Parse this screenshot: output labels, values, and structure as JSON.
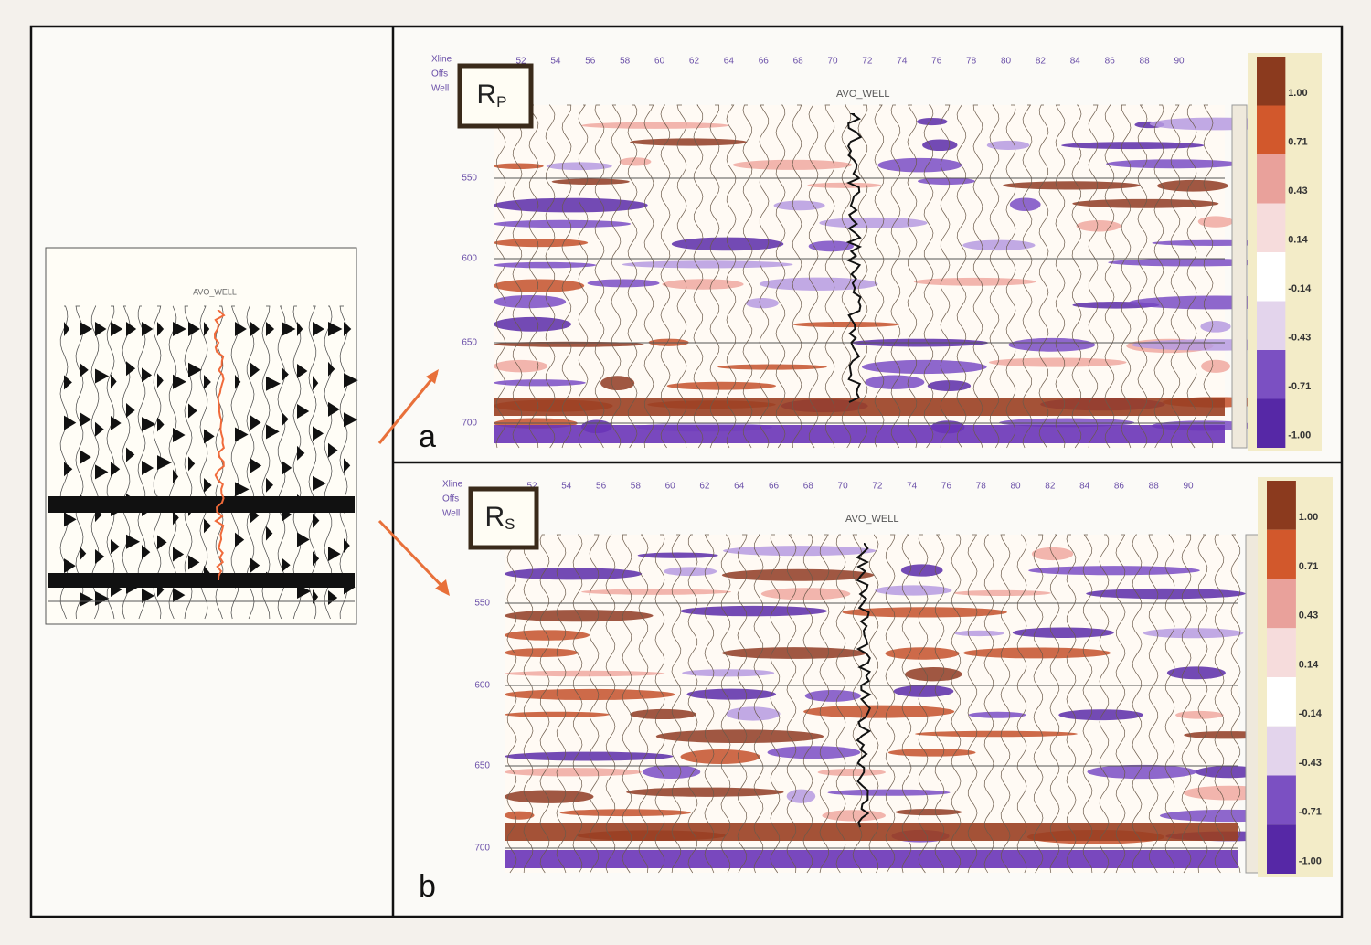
{
  "inset": {
    "well": "AVO_WELL"
  },
  "panels": [
    {
      "label": "a",
      "title": {
        "main": "R",
        "sub": "P"
      },
      "header_rows": [
        "Xline",
        "Offs",
        "Well"
      ],
      "well": "AVO_WELL",
      "x_ticks": [
        "52",
        "54",
        "56",
        "58",
        "60",
        "62",
        "64",
        "66",
        "68",
        "70",
        "72",
        "74",
        "76",
        "78",
        "80",
        "82",
        "84",
        "86",
        "88",
        "90"
      ],
      "time_ticks": [
        "550",
        "600",
        "650",
        "700"
      ],
      "colorbar": [
        "1.00",
        "0.71",
        "0.43",
        "0.14",
        "-0.14",
        "-0.43",
        "-0.71",
        "-1.00"
      ]
    },
    {
      "label": "b",
      "title": {
        "main": "R",
        "sub": "S"
      },
      "header_rows": [
        "Xline",
        "Offs",
        "Well"
      ],
      "well": "AVO_WELL",
      "x_ticks": [
        "52",
        "54",
        "56",
        "58",
        "60",
        "62",
        "64",
        "66",
        "68",
        "70",
        "72",
        "74",
        "76",
        "78",
        "80",
        "82",
        "84",
        "86",
        "88",
        "90"
      ],
      "time_ticks": [
        "550",
        "600",
        "650",
        "700"
      ],
      "colorbar": [
        "1.00",
        "0.71",
        "0.43",
        "0.14",
        "-0.14",
        "-0.43",
        "-0.71",
        "-1.00"
      ]
    }
  ]
}
